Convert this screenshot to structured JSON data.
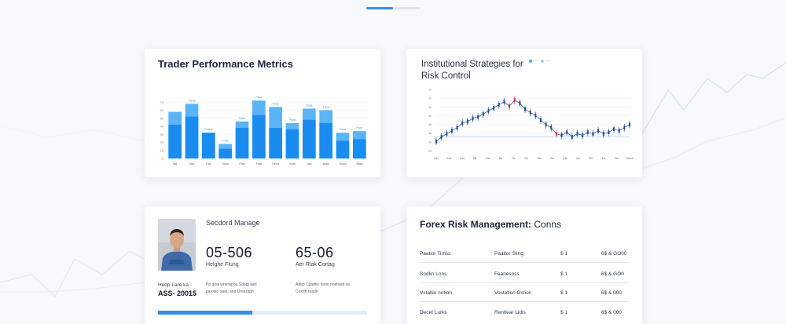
{
  "pager": {
    "active": 1,
    "total": 2
  },
  "performance_card": {
    "title": "Trader Performance Metrics",
    "chart_data": {
      "type": "bar",
      "title": "Trader Performance Metrics",
      "categories": [
        "Ma",
        "Mar",
        "Fab",
        "Sose",
        "Fals",
        "Flab",
        "Sena",
        "Sote",
        "Dav",
        "Adfa",
        "Dosa",
        "Silea"
      ],
      "series": [
        {
          "values": [
            42,
            52,
            32,
            12,
            38,
            54,
            38,
            36,
            48,
            44,
            22,
            24
          ]
        },
        {
          "values": [
            58,
            68,
            32,
            18,
            46,
            72,
            64,
            44,
            62,
            60,
            32,
            34
          ]
        }
      ],
      "data_labels": [
        "",
        "Faxa",
        "Faaca",
        "Foxe",
        "Rafa",
        "Faxa",
        "Foxa",
        "Foxa",
        "Faxa",
        "Faxa",
        "Faca",
        "Foce"
      ],
      "ylim": [
        0,
        80
      ],
      "y_ticks": [
        "0",
        "10",
        "20",
        "30",
        "40",
        "50",
        "60",
        "70"
      ],
      "grid": true
    }
  },
  "institutional_card": {
    "title": "Institutional Strategies for Risk Control",
    "legend": [
      "—",
      "—"
    ],
    "chart_data": {
      "type": "line",
      "title": "Institutional Strategies for Risk Control",
      "x_ticks": [
        "Fox",
        "Xas",
        "Fas",
        "Fle",
        "Fus",
        "Re",
        "Fle",
        "Fle",
        "Sle",
        "Re",
        "Fle",
        "Ne",
        "Fle",
        "Fle",
        "Xle",
        "Saxa"
      ],
      "y_ticks": [
        "2d",
        "2e",
        "4e",
        "3e",
        "4s",
        "3s",
        "2s",
        "1x"
      ],
      "values": [
        12,
        18,
        22,
        26,
        30,
        36,
        38,
        42,
        44,
        48,
        52,
        56,
        60,
        64,
        58,
        66,
        62,
        54,
        50,
        46,
        40,
        34,
        30,
        22,
        20,
        24,
        18,
        22,
        20,
        24,
        22,
        26,
        22,
        24,
        28,
        26,
        30,
        34
      ],
      "highlights": [
        14,
        15,
        23
      ],
      "ylim": [
        0,
        80
      ],
      "grid": true
    }
  },
  "trader_card": {
    "role": "Secdord Manage",
    "stats": [
      {
        "value": "05-506",
        "label": "Helghe Flung"
      },
      {
        "value": "65-06",
        "label": "Aer Rlak Cortag"
      }
    ],
    "side_label": "Hedp Lare ka",
    "side_value": "ASS- 20015",
    "desc_1": [
      "Pp gdal wnerapoa Sdatg aad",
      "pa oslo raes, ano Drearagh"
    ],
    "desc_2": [
      "Adep Cgadle: toolo nnehard sa",
      "Coxdh roade"
    ],
    "progress": 0.45,
    "colors": {
      "accent": "#2f8ff0"
    }
  },
  "forex_card": {
    "title_bold": "Forex Risk Management:",
    "title_thin": "Conns",
    "rows": [
      [
        "Paatior Timss",
        "Paatlor Sling",
        "$ 1",
        "6$ & GO00"
      ],
      [
        "Sodkn Lons",
        "Feanesoss",
        "$ 1",
        "6$ & GO0"
      ],
      [
        "Vstaltin nntion",
        "Vostatlen Ostion",
        "$ 1",
        "6$ & 000"
      ],
      [
        "Decet Lurks",
        "Rentlear Lidis",
        "$ 1",
        "6$ & 000"
      ]
    ]
  }
}
